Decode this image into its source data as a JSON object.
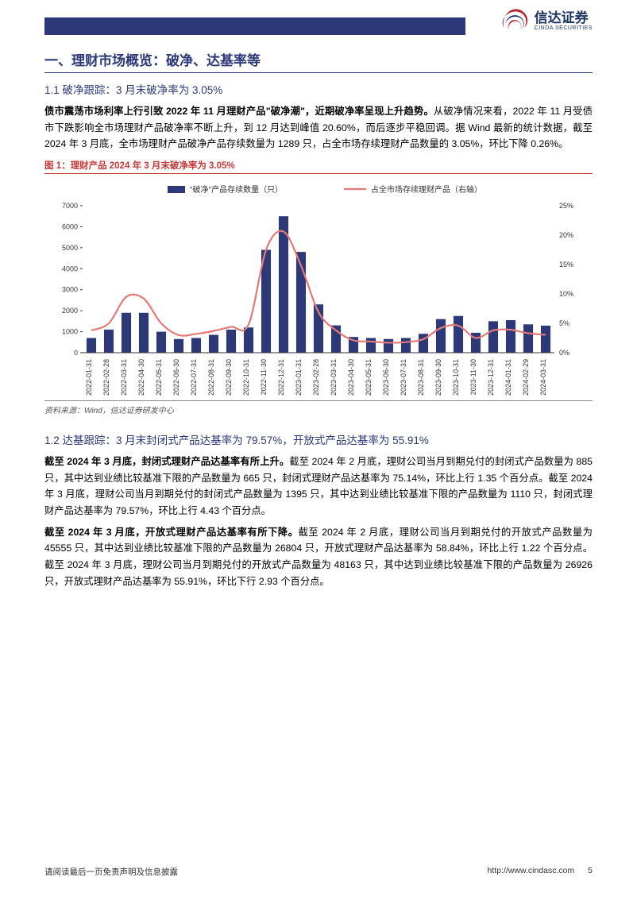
{
  "header": {
    "logo_cn": "信达证券",
    "logo_en": "CINDA SECURITIES"
  },
  "section1": {
    "title": "一、理财市场概览：破净、达基率等",
    "sub1_heading": "1.1 破净跟踪：3 月末破净率为 3.05%",
    "sub1_para_bold": "债市震荡市场利率上行引致 2022 年 11 月理财产品\"破净潮\"，近期破净率呈现上升趋势。",
    "sub1_para_rest": "从破净情况来看，2022 年 11 月受债市下跌影响全市场理财产品破净率不断上升，到 12 月达到峰值 20.60%，而后逐步平稳回调。据 Wind 最新的统计数据，截至 2024 年 3 月底，全市场理财产品破净产品存续数量为 1289 只，占全市场存续理财产品数量的 3.05%，环比下降 0.26%。",
    "fig1_caption": "图 1：理财产品 2024 年 3 月末破净率为 3.05%",
    "fig1_source": "资料来源：Wind，信达证券研发中心",
    "sub2_heading": "1.2 达基跟踪：3 月末封闭式产品达基率为 79.57%，开放式产品达基率为 55.91%",
    "sub2_para1_bold": "截至 2024 年 3 月底，封闭式理财产品达基率有所上升。",
    "sub2_para1_rest": "截至 2024 年 2 月底，理财公司当月到期兑付的封闭式产品数量为 885 只，其中达到业绩比较基准下限的产品数量为 665 只，封闭式理财产品达基率为 75.14%，环比上行 1.35 个百分点。截至 2024 年 3 月底，理财公司当月到期兑付的封闭式产品数量为 1395 只，其中达到业绩比较基准下限的产品数量为 1110 只，封闭式理财产品达基率为 79.57%，环比上行 4.43 个百分点。",
    "sub2_para2_bold": "截至 2024 年 3 月底，开放式理财产品达基率有所下降。",
    "sub2_para2_rest": "截至 2024 年 2 月底，理财公司当月到期兑付的开放式产品数量为 45555 只，其中达到业绩比较基准下限的产品数量为 26804 只，开放式理财产品达基率为 58.84%，环比上行 1.22 个百分点。截至 2024 年 3 月底，理财公司当月到期兑付的开放式产品数量为 48163 只，其中达到业绩比较基准下限的产品数量为 26926 只，开放式理财产品达基率为 55.91%，环比下行 2.93 个百分点。"
  },
  "chart": {
    "type": "bar+line",
    "legend_bar": "\"破净\"产品存续数量（只）",
    "legend_line": "占全市场存续理财产品（右轴）",
    "categories": [
      "2022-01-31",
      "2022-02-28",
      "2022-03-31",
      "2022-04-30",
      "2022-05-31",
      "2022-06-30",
      "2022-07-31",
      "2022-08-31",
      "2022-09-30",
      "2022-10-31",
      "2022-11-30",
      "2022-12-31",
      "2023-01-31",
      "2023-02-28",
      "2023-03-31",
      "2023-04-30",
      "2023-05-31",
      "2023-06-30",
      "2023-07-31",
      "2023-08-31",
      "2023-09-30",
      "2023-10-31",
      "2023-11-30",
      "2023-12-31",
      "2024-01-31",
      "2024-02-29",
      "2024-03-31"
    ],
    "bar_values": [
      700,
      1100,
      1900,
      1900,
      1000,
      650,
      700,
      850,
      1100,
      1200,
      4900,
      6500,
      4800,
      2300,
      1300,
      750,
      700,
      650,
      700,
      900,
      1600,
      1750,
      950,
      1500,
      1550,
      1350,
      1289
    ],
    "line_values_pct": [
      3.8,
      5.0,
      9.5,
      9.2,
      5.0,
      3.0,
      3.2,
      3.7,
      4.4,
      4.8,
      17.5,
      20.6,
      14.8,
      6.9,
      3.8,
      2.1,
      1.9,
      1.7,
      1.8,
      2.3,
      4.2,
      4.6,
      2.5,
      3.8,
      3.9,
      3.31,
      3.05
    ],
    "y_left_ticks": [
      0,
      1000,
      2000,
      3000,
      4000,
      5000,
      6000,
      7000
    ],
    "y_right_ticks": [
      "0%",
      "5%",
      "10%",
      "15%",
      "20%",
      "25%"
    ],
    "bar_color": "#2c3878",
    "line_color": "#e37a77",
    "axis_color": "#333333",
    "tick_fontsize": 9,
    "legend_fontsize": 10,
    "background_color": "#ffffff",
    "ylim_left": [
      0,
      7000
    ],
    "ylim_right": [
      0,
      25
    ],
    "bar_width": 0.55
  },
  "footer": {
    "disclaimer": "请阅读最后一页免责声明及信息披露",
    "url": "http://www.cindasc.com",
    "page": "5"
  }
}
